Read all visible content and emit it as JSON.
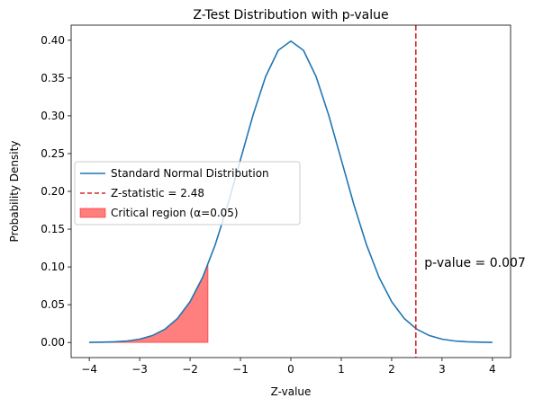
{
  "chart_data": {
    "type": "line",
    "title": "Z-Test Distribution with p-value",
    "xlabel": "Z-value",
    "ylabel": "Probability Density",
    "xlim": [
      -4.36,
      4.36
    ],
    "ylim": [
      -0.02,
      0.42
    ],
    "xticks": [
      -4,
      -3,
      -2,
      -1,
      0,
      1,
      2,
      3,
      4
    ],
    "xtick_labels": [
      "−4",
      "−3",
      "−2",
      "−1",
      "0",
      "1",
      "2",
      "3",
      "4"
    ],
    "yticks": [
      0.0,
      0.05,
      0.1,
      0.15,
      0.2,
      0.25,
      0.3,
      0.35,
      0.4
    ],
    "ytick_labels": [
      "0.00",
      "0.05",
      "0.10",
      "0.15",
      "0.20",
      "0.25",
      "0.30",
      "0.35",
      "0.40"
    ],
    "grid": false,
    "legend_position": "center-left",
    "series": [
      {
        "name": "Standard Normal Distribution",
        "kind": "line",
        "color": "#1f77b4",
        "x": [
          -4.0,
          -3.75,
          -3.5,
          -3.25,
          -3.0,
          -2.75,
          -2.5,
          -2.25,
          -2.0,
          -1.75,
          -1.5,
          -1.25,
          -1.0,
          -0.75,
          -0.5,
          -0.25,
          0.0,
          0.25,
          0.5,
          0.75,
          1.0,
          1.25,
          1.5,
          1.75,
          2.0,
          2.25,
          2.5,
          2.75,
          3.0,
          3.25,
          3.5,
          3.75,
          4.0
        ],
        "y": [
          0.0001,
          0.0004,
          0.0009,
          0.002,
          0.0044,
          0.0091,
          0.0175,
          0.0317,
          0.054,
          0.0863,
          0.1295,
          0.1826,
          0.242,
          0.3011,
          0.3521,
          0.3867,
          0.3989,
          0.3867,
          0.3521,
          0.3011,
          0.242,
          0.1826,
          0.1295,
          0.0863,
          0.054,
          0.0317,
          0.0175,
          0.0091,
          0.0044,
          0.002,
          0.0009,
          0.0004,
          0.0001
        ]
      },
      {
        "name": "Z-statistic = 2.48",
        "kind": "vline",
        "color": "#d62728",
        "x": 2.48
      },
      {
        "name": "Critical region (α=0.05)",
        "kind": "area",
        "color": "#ff0000",
        "x": [
          -4.0,
          -3.75,
          -3.5,
          -3.25,
          -3.0,
          -2.75,
          -2.5,
          -2.25,
          -2.0,
          -1.85,
          -1.75,
          -1.645
        ],
        "y": [
          0.0001,
          0.0004,
          0.0009,
          0.002,
          0.0044,
          0.0091,
          0.0175,
          0.0317,
          0.054,
          0.0721,
          0.0863,
          0.1031
        ]
      }
    ],
    "annotations": [
      {
        "text": "p-value = 0.007",
        "x": 2.65,
        "y": 0.1
      }
    ]
  }
}
